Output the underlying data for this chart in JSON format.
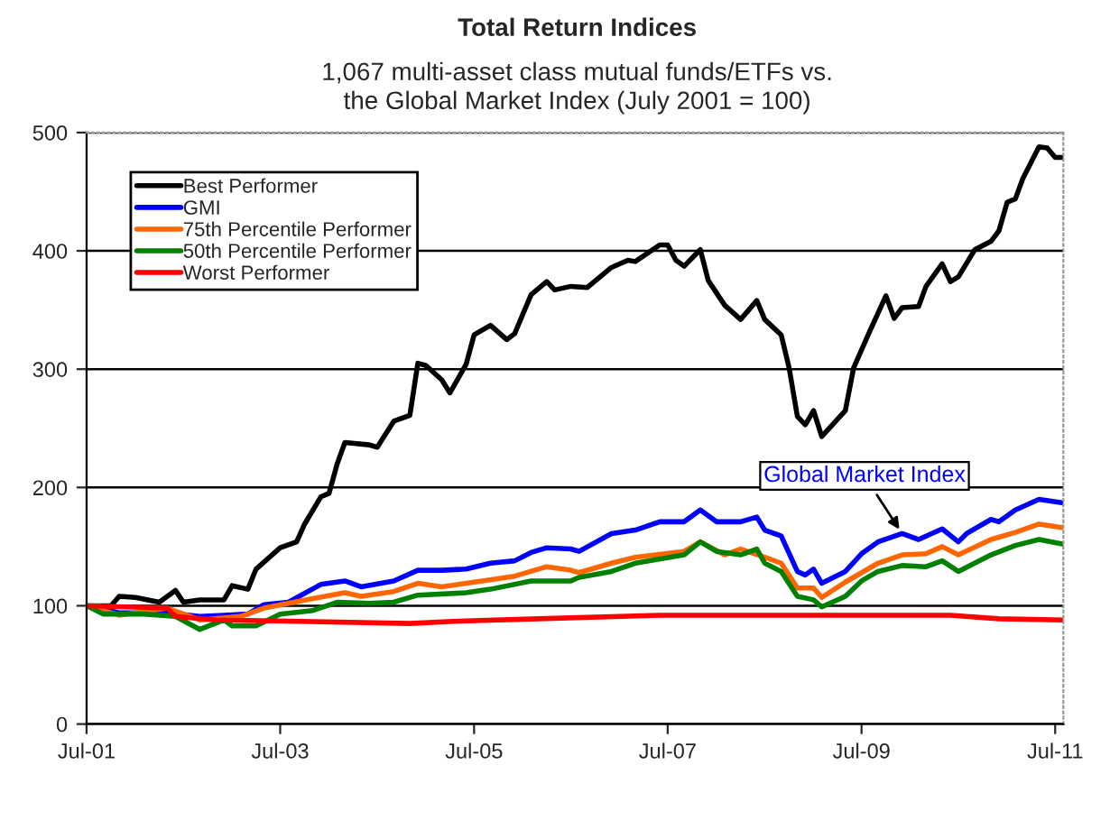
{
  "chart_data": {
    "type": "line",
    "title": "Total Return Indices",
    "subtitle": "1,067 multi-asset class mutual funds/ETFs vs.\nthe Global Market Index (July 2001 = 100)",
    "series": [
      {
        "name": "Best Performer",
        "color": "#000000",
        "x": [
          "2001-07",
          "2001-10",
          "2001-11",
          "2002-01",
          "2002-04",
          "2002-06",
          "2002-07",
          "2002-09",
          "2002-12",
          "2003-01",
          "2003-03",
          "2003-04",
          "2003-07",
          "2003-09",
          "2003-10",
          "2003-12",
          "2004-01",
          "2004-02",
          "2004-03",
          "2004-06",
          "2004-07",
          "2004-09",
          "2004-11",
          "2004-12",
          "2005-01",
          "2005-03",
          "2005-04",
          "2005-06",
          "2005-07",
          "2005-09",
          "2005-11",
          "2005-12",
          "2006-02",
          "2006-04",
          "2006-05",
          "2006-07",
          "2006-09",
          "2006-12",
          "2007-02",
          "2007-03",
          "2007-06",
          "2007-07",
          "2007-08",
          "2007-09",
          "2007-11",
          "2007-12",
          "2008-02",
          "2008-04",
          "2008-06",
          "2008-07",
          "2008-09",
          "2008-10",
          "2008-11",
          "2008-12",
          "2009-01",
          "2009-02",
          "2009-05",
          "2009-06",
          "2009-08",
          "2009-10",
          "2009-11",
          "2009-12",
          "2010-02",
          "2010-03",
          "2010-05",
          "2010-06",
          "2010-07",
          "2010-09",
          "2010-11",
          "2010-12",
          "2011-01",
          "2011-02",
          "2011-03",
          "2011-05",
          "2011-06",
          "2011-07",
          "2011-08"
        ],
        "values": [
          100,
          100,
          108,
          107,
          103,
          113,
          103,
          105,
          105,
          117,
          114,
          131,
          149,
          154,
          169,
          192,
          195,
          220,
          238,
          236,
          234,
          256,
          261,
          305,
          303,
          291,
          280,
          304,
          329,
          337,
          325,
          330,
          363,
          374,
          367,
          370,
          369,
          386,
          392,
          391,
          405,
          405,
          392,
          387,
          401,
          375,
          354,
          342,
          358,
          342,
          329,
          301,
          260,
          253,
          265,
          243,
          265,
          301,
          332,
          362,
          343,
          352,
          353,
          370,
          389,
          374,
          378,
          401,
          408,
          417,
          441,
          444,
          461,
          488,
          487,
          479,
          479
        ]
      },
      {
        "name": "GMI",
        "color": "#0000ff",
        "x": [
          "2001-07",
          "2001-11",
          "2002-05",
          "2002-09",
          "2002-12",
          "2003-03",
          "2003-05",
          "2003-08",
          "2003-12",
          "2004-03",
          "2004-05",
          "2004-09",
          "2004-12",
          "2005-03",
          "2005-06",
          "2005-09",
          "2005-12",
          "2006-02",
          "2006-04",
          "2006-07",
          "2006-08",
          "2006-12",
          "2007-03",
          "2007-06",
          "2007-09",
          "2007-11",
          "2008-01",
          "2008-04",
          "2008-06",
          "2008-07",
          "2008-09",
          "2008-11",
          "2008-12",
          "2009-01",
          "2009-02",
          "2009-05",
          "2009-07",
          "2009-09",
          "2009-12",
          "2010-02",
          "2010-05",
          "2010-07",
          "2010-08",
          "2010-11",
          "2010-12",
          "2011-02",
          "2011-05",
          "2011-08"
        ],
        "values": [
          100,
          94,
          94,
          91,
          92,
          93,
          101,
          103,
          118,
          121,
          116,
          121,
          130,
          130,
          131,
          136,
          138,
          145,
          149,
          148,
          146,
          161,
          164,
          171,
          171,
          181,
          171,
          171,
          175,
          164,
          159,
          129,
          126,
          131,
          119,
          129,
          144,
          154,
          161,
          156,
          165,
          154,
          161,
          173,
          171,
          181,
          190,
          187
        ]
      },
      {
        "name": "75th Percentile Performer",
        "color": "#ff6600",
        "x": [
          "2001-07",
          "2001-11",
          "2002-05",
          "2002-09",
          "2003-02",
          "2003-05",
          "2003-11",
          "2004-03",
          "2004-05",
          "2004-09",
          "2004-12",
          "2005-03",
          "2005-08",
          "2005-12",
          "2006-04",
          "2006-07",
          "2006-08",
          "2006-12",
          "2007-03",
          "2007-09",
          "2007-11",
          "2008-02",
          "2008-04",
          "2008-07",
          "2008-09",
          "2008-11",
          "2009-01",
          "2009-02",
          "2009-05",
          "2009-09",
          "2009-12",
          "2010-03",
          "2010-05",
          "2010-07",
          "2010-11",
          "2011-02",
          "2011-05",
          "2011-08"
        ],
        "values": [
          100,
          92,
          98,
          88,
          91,
          98,
          106,
          111,
          108,
          112,
          119,
          116,
          121,
          125,
          133,
          130,
          128,
          136,
          141,
          146,
          154,
          143,
          148,
          141,
          136,
          115,
          115,
          107,
          120,
          136,
          143,
          144,
          150,
          143,
          156,
          162,
          169,
          166
        ]
      },
      {
        "name": "50th Percentile Performer",
        "color": "#008000",
        "x": [
          "2001-07",
          "2001-09",
          "2002-02",
          "2002-06",
          "2002-09",
          "2002-12",
          "2003-01",
          "2003-04",
          "2003-07",
          "2003-11",
          "2004-02",
          "2004-06",
          "2004-09",
          "2004-12",
          "2005-06",
          "2005-09",
          "2006-02",
          "2006-07",
          "2006-08",
          "2006-12",
          "2007-03",
          "2007-09",
          "2007-11",
          "2008-01",
          "2008-04",
          "2008-06",
          "2008-07",
          "2008-09",
          "2008-11",
          "2009-01",
          "2009-02",
          "2009-05",
          "2009-07",
          "2009-09",
          "2009-12",
          "2010-03",
          "2010-05",
          "2010-07",
          "2010-11",
          "2011-02",
          "2011-05",
          "2011-08"
        ],
        "values": [
          100,
          93,
          93,
          91,
          80,
          88,
          83,
          83,
          93,
          96,
          103,
          102,
          103,
          109,
          111,
          114,
          121,
          121,
          124,
          129,
          136,
          143,
          154,
          146,
          143,
          148,
          136,
          129,
          108,
          105,
          99,
          108,
          121,
          129,
          134,
          133,
          138,
          129,
          143,
          151,
          156,
          152
        ]
      },
      {
        "name": "Worst Performer",
        "color": "#ff0000",
        "x": [
          "2001-07",
          "2002-05",
          "2002-06",
          "2002-11",
          "2003-08",
          "2004-11",
          "2005-05",
          "2006-03",
          "2007-06",
          "2008-02",
          "2010-06",
          "2010-12",
          "2011-08"
        ],
        "values": [
          100,
          98,
          91,
          88,
          87,
          85,
          87,
          89,
          92,
          92,
          92,
          89,
          88
        ]
      }
    ],
    "xlim": [
      "2001-07",
      "2011-08"
    ],
    "xticks": [
      {
        "value": "2001-07",
        "label": "Jul-01"
      },
      {
        "value": "2003-07",
        "label": "Jul-03"
      },
      {
        "value": "2005-07",
        "label": "Jul-05"
      },
      {
        "value": "2007-07",
        "label": "Jul-07"
      },
      {
        "value": "2009-07",
        "label": "Jul-09"
      },
      {
        "value": "2011-07",
        "label": "Jul-11"
      }
    ],
    "ylim": [
      0,
      500
    ],
    "yticks": [
      0,
      100,
      200,
      300,
      400,
      500
    ],
    "grid": "y",
    "legend": "top left",
    "marker": "none",
    "line_style": "solid",
    "annotations": [
      {
        "text": "Global Market Index",
        "x": "2009-12",
        "y": 161
      }
    ]
  }
}
